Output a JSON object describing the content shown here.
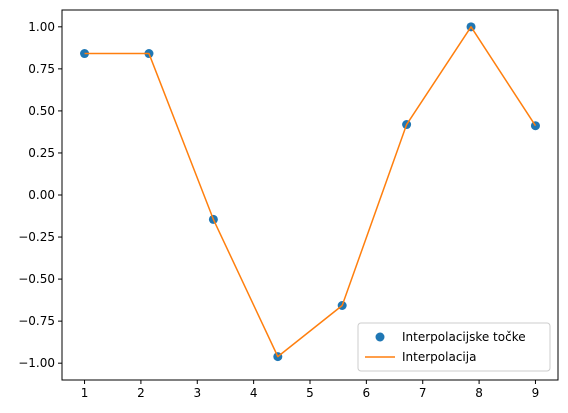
{
  "chart_data": {
    "type": "line",
    "title": "",
    "xlabel": "",
    "ylabel": "",
    "xlim": [
      0.6,
      9.4
    ],
    "ylim": [
      -1.1,
      1.1
    ],
    "xticks": [
      1,
      2,
      3,
      4,
      5,
      6,
      7,
      8,
      9
    ],
    "xtick_labels": [
      "1",
      "2",
      "3",
      "4",
      "5",
      "6",
      "7",
      "8",
      "9"
    ],
    "yticks": [
      -1.0,
      -0.75,
      -0.5,
      -0.25,
      0.0,
      0.25,
      0.5,
      0.75,
      1.0
    ],
    "ytick_labels": [
      "−1.00",
      "−0.75",
      "−0.50",
      "−0.25",
      "0.00",
      "0.25",
      "0.50",
      "0.75",
      "1.00"
    ],
    "grid": false,
    "legend_position": "lower right",
    "series": [
      {
        "name": "Interpolacijske točke",
        "kind": "scatter",
        "color": "#1f77b4",
        "x": [
          1.0,
          2.143,
          3.286,
          4.429,
          5.571,
          6.714,
          7.857,
          9.0
        ],
        "y": [
          0.841,
          0.841,
          -0.145,
          -0.961,
          -0.657,
          0.419,
          1.0,
          0.412
        ]
      },
      {
        "name": "Interpolacija",
        "kind": "line",
        "color": "#ff7f0e",
        "x": [
          1.0,
          2.143,
          3.286,
          4.429,
          5.571,
          6.714,
          7.857,
          9.0
        ],
        "y": [
          0.841,
          0.841,
          -0.145,
          -0.961,
          -0.657,
          0.419,
          1.0,
          0.412
        ]
      }
    ]
  }
}
